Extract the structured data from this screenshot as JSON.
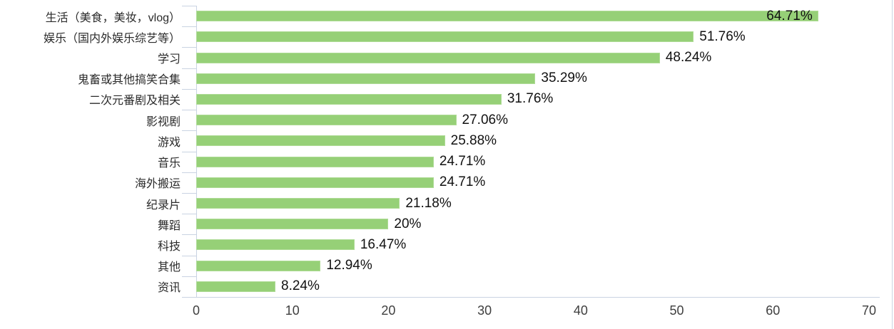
{
  "chart_data": {
    "type": "bar",
    "orientation": "horizontal",
    "title": "",
    "xlabel": "",
    "ylabel": "",
    "categories": [
      "生活（美食，美妆，vlog）",
      "娱乐（国内外娱乐综艺等）",
      "学习",
      "鬼畜或其他搞笑合集",
      "二次元番剧及相关",
      "影视剧",
      "游戏",
      "音乐",
      "海外搬运",
      "纪录片",
      "舞蹈",
      "科技",
      "其他",
      "资讯"
    ],
    "values": [
      64.71,
      51.76,
      48.24,
      35.29,
      31.76,
      27.06,
      25.88,
      24.71,
      24.71,
      21.18,
      20,
      16.47,
      12.94,
      8.24
    ],
    "data_labels": [
      "64.71%",
      "51.76%",
      "48.24%",
      "35.29%",
      "31.76%",
      "27.06%",
      "25.88%",
      "24.71%",
      "24.71%",
      "21.18%",
      "20%",
      "16.47%",
      "12.94%",
      "8.24%"
    ],
    "x_ticks": [
      "0",
      "10",
      "20",
      "30",
      "40",
      "50",
      "60",
      "70"
    ],
    "xlim": [
      0,
      70
    ],
    "grid": false,
    "legend": null,
    "label_placement_first_bar": "inside-end",
    "colors": {
      "bar_fill": "#96d077",
      "bar_edge": "#aedb95",
      "axis_line": "#c9d3e2",
      "value_text": "#111111",
      "category_text": "#2b2b2b",
      "tick_text": "#3f3f3f",
      "background": "#ffffff"
    }
  }
}
